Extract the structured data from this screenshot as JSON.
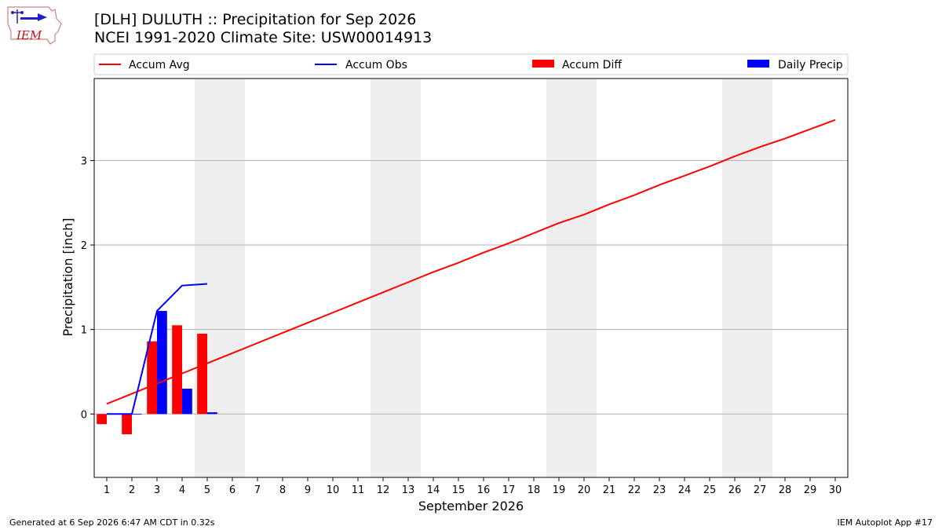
{
  "header": {
    "logo_text": "IEM",
    "title_line1": "[DLH] DULUTH :: Precipitation for Sep 2026",
    "title_line2": "NCEI 1991-2020 Climate Site: USW00014913"
  },
  "legend": {
    "placement": "top, above plot",
    "items": [
      {
        "label": "Accum Avg",
        "kind": "line",
        "color": "#ff0000"
      },
      {
        "label": "Accum Obs",
        "kind": "line",
        "color": "#0000ff"
      },
      {
        "label": "Accum Diff",
        "kind": "bar",
        "color": "#ff0000"
      },
      {
        "label": "Daily Precip",
        "kind": "bar",
        "color": "#0000ff"
      }
    ]
  },
  "footer": {
    "left": "Generated at 6 Sep 2026 6:47 AM CDT in 0.32s",
    "right": "IEM Autoplot App #17"
  },
  "chart_data": {
    "type": "bar",
    "xlabel": "September 2026",
    "ylabel": "Precipitation [inch]",
    "x": [
      1,
      2,
      3,
      4,
      5,
      6,
      7,
      8,
      9,
      10,
      11,
      12,
      13,
      14,
      15,
      16,
      17,
      18,
      19,
      20,
      21,
      22,
      23,
      24,
      25,
      26,
      27,
      28,
      29,
      30
    ],
    "xlim": [
      0.5,
      30.5
    ],
    "ylim": [
      -0.75,
      3.97
    ],
    "yticks": [
      0,
      1,
      2,
      3
    ],
    "grid": "horizontal",
    "weekend_shading": [
      [
        4.5,
        6.5
      ],
      [
        11.5,
        13.5
      ],
      [
        18.5,
        20.5
      ],
      [
        25.5,
        27.5
      ]
    ],
    "weekend_color": "#eeeeee",
    "series": [
      {
        "name": "Accum Avg",
        "kind": "line",
        "color": "#ff0000",
        "x": [
          1,
          2,
          3,
          4,
          5,
          6,
          7,
          8,
          9,
          10,
          11,
          12,
          13,
          14,
          15,
          16,
          17,
          18,
          19,
          20,
          21,
          22,
          23,
          24,
          25,
          26,
          27,
          28,
          29,
          30
        ],
        "values": [
          0.12,
          0.24,
          0.36,
          0.48,
          0.6,
          0.72,
          0.84,
          0.96,
          1.08,
          1.2,
          1.32,
          1.44,
          1.56,
          1.68,
          1.79,
          1.91,
          2.02,
          2.14,
          2.26,
          2.36,
          2.48,
          2.59,
          2.71,
          2.82,
          2.93,
          3.05,
          3.16,
          3.26,
          3.37,
          3.48
        ]
      },
      {
        "name": "Accum Obs",
        "kind": "line",
        "color": "#0000ff",
        "x": [
          1,
          2,
          3,
          4,
          5
        ],
        "values": [
          0.0,
          0.0,
          1.22,
          1.52,
          1.54
        ]
      },
      {
        "name": "Accum Diff",
        "kind": "bar",
        "color": "#ff0000",
        "x": [
          1,
          2,
          3,
          4,
          5
        ],
        "values": [
          -0.12,
          -0.24,
          0.86,
          1.05,
          0.95
        ]
      },
      {
        "name": "Daily Precip",
        "kind": "bar",
        "color": "#0000ff",
        "x": [
          1,
          2,
          3,
          4,
          5
        ],
        "values": [
          0.0,
          0.0,
          1.22,
          0.3,
          0.02
        ]
      }
    ]
  }
}
